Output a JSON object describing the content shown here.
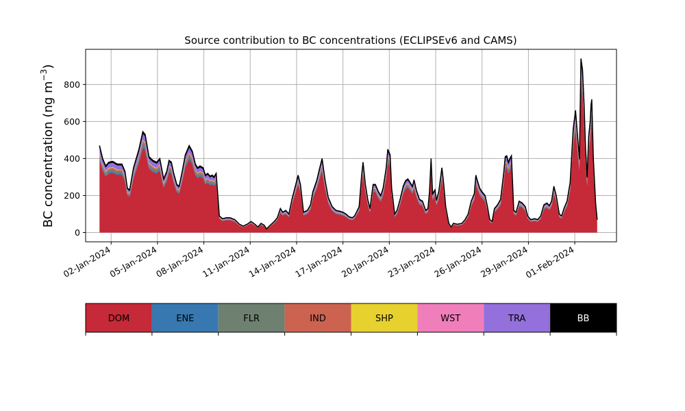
{
  "chart_data": {
    "type": "area",
    "title": "Source contribution to BC concentrations (ECLIPSEv6 and CAMS)",
    "ylabel": "BC concentration (ng m",
    "ylabel_sup": "−3",
    "ylabel_close": ")",
    "xlabel": "",
    "ylim": [
      -50,
      990
    ],
    "xlim_days": [
      0.35,
      34.7
    ],
    "yticks": [
      0,
      200,
      400,
      600,
      800
    ],
    "xticks": [
      "02-Jan-2024",
      "05-Jan-2024",
      "08-Jan-2024",
      "11-Jan-2024",
      "14-Jan-2024",
      "17-Jan-2024",
      "20-Jan-2024",
      "23-Jan-2024",
      "26-Jan-2024",
      "29-Jan-2024",
      "01-Feb-2024"
    ],
    "grid": true,
    "legend_placement": "bottom",
    "series": [
      {
        "name": "DOM",
        "color": "#c62937",
        "fraction": 0.84
      },
      {
        "name": "ENE",
        "color": "#3878b0",
        "fraction": 0.02
      },
      {
        "name": "FLR",
        "color": "#6e8070",
        "fraction": 0.03
      },
      {
        "name": "IND",
        "color": "#cc6350",
        "fraction": 0.02
      },
      {
        "name": "SHP",
        "color": "#e6d12e",
        "fraction": 0.005
      },
      {
        "name": "WST",
        "color": "#f07ebb",
        "fraction": 0.005
      },
      {
        "name": "TRA",
        "color": "#9370db",
        "fraction": 0.065
      },
      {
        "name": "BB",
        "color": "#000000",
        "fraction": 0.015
      }
    ],
    "total": [
      [
        1.25,
        470
      ],
      [
        1.45,
        400
      ],
      [
        1.65,
        360
      ],
      [
        1.85,
        380
      ],
      [
        2.1,
        385
      ],
      [
        2.4,
        370
      ],
      [
        2.7,
        370
      ],
      [
        2.9,
        330
      ],
      [
        3.05,
        240
      ],
      [
        3.2,
        230
      ],
      [
        3.45,
        350
      ],
      [
        3.8,
        450
      ],
      [
        4.05,
        545
      ],
      [
        4.2,
        530
      ],
      [
        4.45,
        410
      ],
      [
        4.7,
        390
      ],
      [
        4.95,
        380
      ],
      [
        5.15,
        400
      ],
      [
        5.4,
        290
      ],
      [
        5.6,
        330
      ],
      [
        5.75,
        390
      ],
      [
        5.9,
        380
      ],
      [
        6.05,
        320
      ],
      [
        6.25,
        260
      ],
      [
        6.4,
        250
      ],
      [
        6.6,
        330
      ],
      [
        6.8,
        420
      ],
      [
        7.05,
        470
      ],
      [
        7.25,
        440
      ],
      [
        7.45,
        370
      ],
      [
        7.6,
        350
      ],
      [
        7.75,
        360
      ],
      [
        7.95,
        350
      ],
      [
        8.1,
        310
      ],
      [
        8.25,
        320
      ],
      [
        8.4,
        305
      ],
      [
        8.55,
        310
      ],
      [
        8.65,
        300
      ],
      [
        8.8,
        320
      ],
      [
        9.0,
        90
      ],
      [
        9.2,
        75
      ],
      [
        9.45,
        80
      ],
      [
        9.7,
        80
      ],
      [
        10.0,
        70
      ],
      [
        10.3,
        45
      ],
      [
        10.55,
        35
      ],
      [
        10.8,
        45
      ],
      [
        11.05,
        60
      ],
      [
        11.3,
        45
      ],
      [
        11.5,
        30
      ],
      [
        11.7,
        50
      ],
      [
        11.9,
        40
      ],
      [
        12.05,
        20
      ],
      [
        12.3,
        40
      ],
      [
        12.55,
        60
      ],
      [
        12.75,
        80
      ],
      [
        12.95,
        130
      ],
      [
        13.1,
        110
      ],
      [
        13.3,
        120
      ],
      [
        13.5,
        100
      ],
      [
        13.7,
        180
      ],
      [
        13.95,
        260
      ],
      [
        14.1,
        310
      ],
      [
        14.25,
        260
      ],
      [
        14.45,
        110
      ],
      [
        14.7,
        120
      ],
      [
        14.9,
        150
      ],
      [
        15.05,
        220
      ],
      [
        15.3,
        280
      ],
      [
        15.5,
        350
      ],
      [
        15.65,
        400
      ],
      [
        15.85,
        280
      ],
      [
        16.05,
        190
      ],
      [
        16.3,
        140
      ],
      [
        16.55,
        120
      ],
      [
        16.8,
        115
      ],
      [
        17.0,
        110
      ],
      [
        17.2,
        100
      ],
      [
        17.4,
        85
      ],
      [
        17.6,
        80
      ],
      [
        17.75,
        90
      ],
      [
        17.9,
        115
      ],
      [
        18.05,
        140
      ],
      [
        18.2,
        300
      ],
      [
        18.3,
        380
      ],
      [
        18.45,
        260
      ],
      [
        18.6,
        180
      ],
      [
        18.75,
        130
      ],
      [
        18.95,
        260
      ],
      [
        19.1,
        260
      ],
      [
        19.3,
        220
      ],
      [
        19.45,
        200
      ],
      [
        19.6,
        240
      ],
      [
        19.8,
        350
      ],
      [
        19.9,
        450
      ],
      [
        20.05,
        420
      ],
      [
        20.15,
        240
      ],
      [
        20.35,
        100
      ],
      [
        20.5,
        120
      ],
      [
        20.7,
        180
      ],
      [
        20.9,
        250
      ],
      [
        21.05,
        280
      ],
      [
        21.2,
        290
      ],
      [
        21.35,
        270
      ],
      [
        21.5,
        250
      ],
      [
        21.6,
        285
      ],
      [
        21.75,
        230
      ],
      [
        21.95,
        180
      ],
      [
        22.15,
        170
      ],
      [
        22.35,
        120
      ],
      [
        22.5,
        130
      ],
      [
        22.6,
        220
      ],
      [
        22.7,
        400
      ],
      [
        22.8,
        210
      ],
      [
        22.95,
        230
      ],
      [
        23.05,
        175
      ],
      [
        23.2,
        220
      ],
      [
        23.4,
        350
      ],
      [
        23.5,
        280
      ],
      [
        23.65,
        140
      ],
      [
        23.85,
        50
      ],
      [
        24.0,
        30
      ],
      [
        24.15,
        50
      ],
      [
        24.4,
        45
      ],
      [
        24.7,
        50
      ],
      [
        24.9,
        70
      ],
      [
        25.1,
        100
      ],
      [
        25.3,
        170
      ],
      [
        25.5,
        210
      ],
      [
        25.6,
        310
      ],
      [
        25.7,
        280
      ],
      [
        25.85,
        240
      ],
      [
        26.0,
        220
      ],
      [
        26.2,
        200
      ],
      [
        26.35,
        140
      ],
      [
        26.5,
        70
      ],
      [
        26.65,
        60
      ],
      [
        26.8,
        130
      ],
      [
        27.0,
        150
      ],
      [
        27.2,
        180
      ],
      [
        27.4,
        320
      ],
      [
        27.5,
        410
      ],
      [
        27.6,
        415
      ],
      [
        27.7,
        380
      ],
      [
        27.8,
        400
      ],
      [
        27.9,
        415
      ],
      [
        28.05,
        120
      ],
      [
        28.2,
        110
      ],
      [
        28.4,
        170
      ],
      [
        28.6,
        160
      ],
      [
        28.8,
        140
      ],
      [
        28.95,
        90
      ],
      [
        29.15,
        70
      ],
      [
        29.4,
        75
      ],
      [
        29.6,
        70
      ],
      [
        29.8,
        90
      ],
      [
        30.0,
        150
      ],
      [
        30.2,
        160
      ],
      [
        30.35,
        145
      ],
      [
        30.5,
        170
      ],
      [
        30.65,
        250
      ],
      [
        30.8,
        200
      ],
      [
        31.0,
        100
      ],
      [
        31.15,
        90
      ],
      [
        31.3,
        130
      ],
      [
        31.5,
        170
      ],
      [
        31.7,
        270
      ],
      [
        31.9,
        560
      ],
      [
        32.05,
        660
      ],
      [
        32.2,
        500
      ],
      [
        32.3,
        400
      ],
      [
        32.4,
        940
      ],
      [
        32.5,
        880
      ],
      [
        32.6,
        700
      ],
      [
        32.7,
        450
      ],
      [
        32.8,
        300
      ],
      [
        32.9,
        520
      ],
      [
        33.0,
        600
      ],
      [
        33.05,
        690
      ],
      [
        33.1,
        720
      ],
      [
        33.2,
        400
      ],
      [
        33.35,
        160
      ],
      [
        33.45,
        70
      ]
    ]
  }
}
